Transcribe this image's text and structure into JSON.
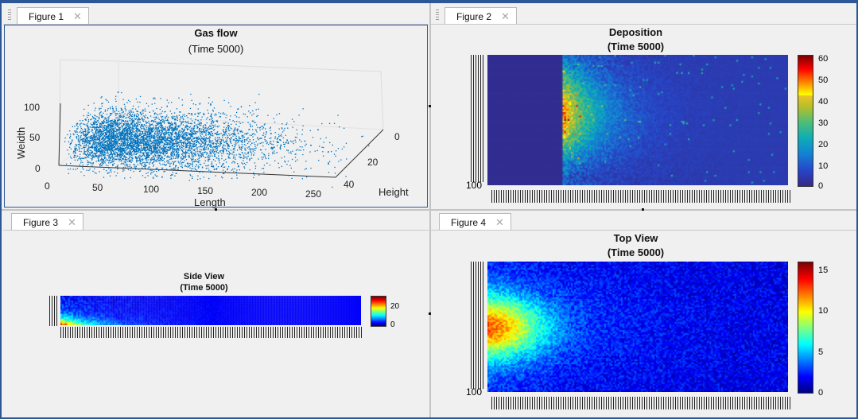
{
  "figures": [
    {
      "tab": "Figure 1",
      "title": "Gas flow",
      "subtitle": "(Time 5000)",
      "axes": {
        "xlabel": "Length",
        "ylabel": "Weidth",
        "zlabel": "Height",
        "xticks": [
          "0",
          "50",
          "100",
          "150",
          "200",
          "250"
        ],
        "yticks": [
          "0",
          "50",
          "100"
        ],
        "zticks": [
          "0",
          "20",
          "40"
        ]
      }
    },
    {
      "tab": "Figure 2",
      "title": "Deposition",
      "subtitle": "(Time 5000)",
      "ytick_bottom": "100",
      "colorbar": [
        "60",
        "50",
        "40",
        "30",
        "20",
        "10",
        "0"
      ]
    },
    {
      "tab": "Figure 3",
      "title": "Side View",
      "subtitle": "(Time 5000)",
      "colorbar": [
        "20",
        "0"
      ]
    },
    {
      "tab": "Figure 4",
      "title": "Top View",
      "subtitle": "(Time 5000)",
      "ytick_bottom": "100",
      "colorbar": [
        "15",
        "10",
        "5",
        "0"
      ]
    }
  ],
  "chart_data": [
    {
      "type": "scatter",
      "title": "Gas flow",
      "subtitle": "(Time 5000)",
      "xlabel": "Length",
      "ylabel": "Weidth",
      "zlabel": "Height",
      "xlim": [
        0,
        270
      ],
      "ylim": [
        0,
        110
      ],
      "zlim": [
        0,
        45
      ],
      "color": "#0072bd"
    },
    {
      "type": "heatmap",
      "title": "Deposition",
      "subtitle": "(Time 5000)",
      "clim": [
        0,
        62
      ],
      "colormap": "parula",
      "colorbar_ticks": [
        0,
        10,
        20,
        30,
        40,
        50,
        60
      ]
    },
    {
      "type": "heatmap",
      "title": "Side View",
      "subtitle": "(Time 5000)",
      "clim": [
        0,
        25
      ],
      "colormap": "jet",
      "colorbar_ticks": [
        0,
        20
      ]
    },
    {
      "type": "heatmap",
      "title": "Top View",
      "subtitle": "(Time 5000)",
      "clim": [
        0,
        16
      ],
      "colormap": "jet",
      "colorbar_ticks": [
        0,
        5,
        10,
        15
      ]
    }
  ]
}
